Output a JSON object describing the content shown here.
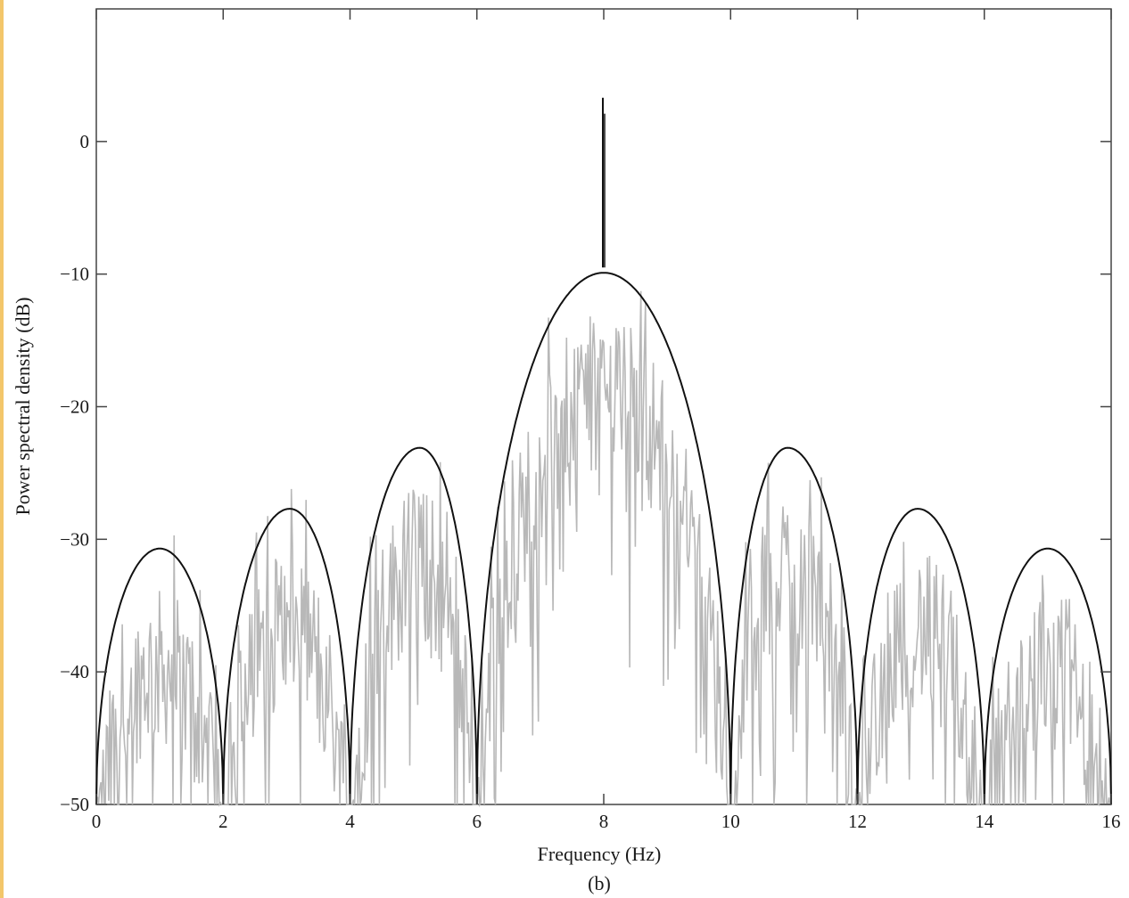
{
  "chart_data": {
    "type": "line",
    "xlabel": "Frequency (Hz)",
    "ylabel": "Power spectral density (dB)",
    "caption": "(b)",
    "xlim": [
      0,
      16
    ],
    "ylim": [
      -50,
      10
    ],
    "xticks": [
      0,
      2,
      4,
      6,
      8,
      10,
      12,
      14,
      16
    ],
    "yticks": [
      -50,
      -40,
      -30,
      -20,
      -10,
      0
    ],
    "grid": false,
    "colors": {
      "theoretical": "#111111",
      "estimated": "#b8b8b8",
      "frame": "#444444"
    },
    "series": [
      {
        "role": "theoretical",
        "description_points": {
          "lobe_peaks": [
            {
              "x": 1.0,
              "y": -30.7
            },
            {
              "x": 3.05,
              "y": -27.7
            },
            {
              "x": 5.1,
              "y": -23.1
            },
            {
              "x": 8.0,
              "y": -9.9
            },
            {
              "x": 10.9,
              "y": -23.1
            },
            {
              "x": 12.95,
              "y": -27.7
            },
            {
              "x": 15.0,
              "y": -30.7
            }
          ],
          "nulls": [
            0,
            2,
            4,
            6,
            10,
            12,
            14,
            16
          ],
          "null_level": -50,
          "carrier_spike": {
            "x": 8.0,
            "y": 3.3
          }
        }
      },
      {
        "role": "estimated",
        "description_points": {
          "envelope_offset_mean_db": -9,
          "envelope_offset_spread_db": 6
        }
      }
    ]
  }
}
